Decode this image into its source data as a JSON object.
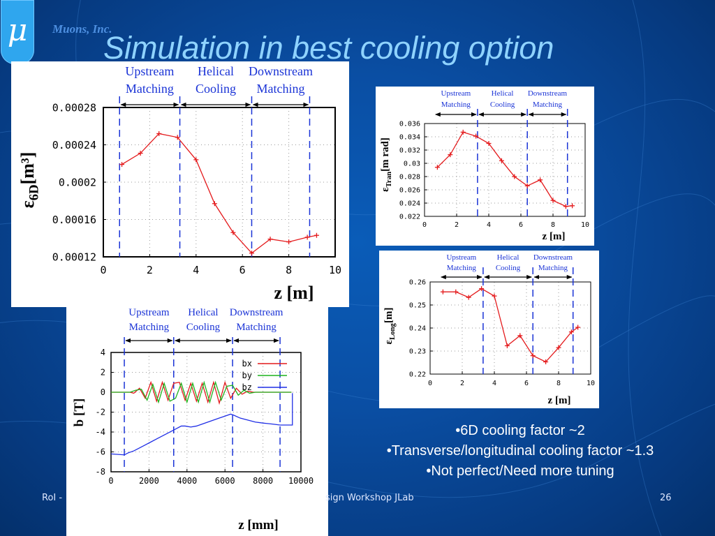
{
  "slide": {
    "title": "Simulation in best cooling option",
    "company": "Muons, Inc.",
    "logo_glyph": "μ",
    "page_number": "26",
    "footer_left": "RoI -",
    "footer_center": "sign Workshop JLab",
    "bullets": [
      "•6D cooling factor ~2",
      "•Transverse/longitudinal cooling factor ~1.3",
      "•Not perfect/Need more tuning"
    ]
  },
  "colors": {
    "background": "#0a4ea3",
    "title": "#8fd3ff",
    "logo": "#2fa6ee",
    "company": "#4d8fe0",
    "region_label": "#1a33d6",
    "curve": "#e41a1c"
  },
  "chart_data": [
    {
      "type": "line",
      "id": "emittance-6d",
      "regions": [
        "Upstream",
        "Matching",
        "Helical",
        "Cooling",
        "Downstream",
        "Matching"
      ],
      "region_boundaries": [
        0.7,
        3.3,
        6.4,
        8.9
      ],
      "xlabel": "z [m]",
      "ylabel": "ε6D [m³]",
      "xlim": [
        0,
        10
      ],
      "ylim": [
        0.00012,
        0.00028
      ],
      "xticks": [
        0,
        2,
        4,
        6,
        8,
        10
      ],
      "xtick_labels": [
        "0",
        "2",
        "4",
        "6",
        "8",
        "10"
      ],
      "yticks": [
        0.00012,
        0.00016,
        0.0002,
        0.00024,
        0.00028
      ],
      "ytick_labels": [
        "0.00012",
        "0.00016",
        "0.0002",
        "0.00024",
        "0.00028"
      ],
      "grid": true,
      "series": [
        {
          "x": [
            0.8,
            1.6,
            2.4,
            3.2,
            4.0,
            4.8,
            5.6,
            6.4,
            7.2,
            8.0,
            8.8,
            9.2
          ],
          "values": [
            0.000219,
            0.000231,
            0.000252,
            0.000248,
            0.000224,
            0.000177,
            0.000146,
            0.000124,
            0.000139,
            0.000136,
            0.000141,
            0.000143
          ]
        }
      ]
    },
    {
      "type": "line",
      "id": "emittance-transverse",
      "regions": [
        "Upstream",
        "Matching",
        "Helical",
        "Cooling",
        "Downstream",
        "Matching"
      ],
      "region_boundaries": [
        3.3,
        6.4,
        8.9
      ],
      "xlabel": "z [m]",
      "ylabel": "εTran[m rad]",
      "xlim": [
        0,
        10
      ],
      "ylim": [
        0.022,
        0.036
      ],
      "xticks": [
        0,
        2,
        4,
        6,
        8,
        10
      ],
      "xtick_labels": [
        "0",
        "2",
        "4",
        "6",
        "8",
        "10"
      ],
      "yticks": [
        0.022,
        0.024,
        0.026,
        0.028,
        0.03,
        0.032,
        0.034,
        0.036
      ],
      "ytick_labels": [
        "0.022",
        "0.024",
        "0.026",
        "0.028",
        "0.03",
        "0.032",
        "0.034",
        "0.036"
      ],
      "grid": true,
      "series": [
        {
          "x": [
            0.8,
            1.6,
            2.4,
            3.2,
            4.0,
            4.8,
            5.6,
            6.4,
            7.2,
            8.0,
            8.8,
            9.2
          ],
          "values": [
            0.0294,
            0.0313,
            0.0347,
            0.0341,
            0.033,
            0.0304,
            0.028,
            0.0266,
            0.0275,
            0.0244,
            0.0235,
            0.0236
          ]
        }
      ]
    },
    {
      "type": "line",
      "id": "emittance-longitudinal",
      "regions": [
        "Upstream",
        "Matching",
        "Helical",
        "Cooling",
        "Downstream",
        "Matching"
      ],
      "region_boundaries": [
        3.3,
        6.4,
        8.9
      ],
      "xlabel": "z [m]",
      "ylabel": "εLong[m]",
      "xlim": [
        0,
        10
      ],
      "ylim": [
        0.22,
        0.26
      ],
      "xticks": [
        0,
        2,
        4,
        6,
        8,
        10
      ],
      "xtick_labels": [
        "0",
        "2",
        "4",
        "6",
        "8",
        "10"
      ],
      "yticks": [
        0.22,
        0.23,
        0.24,
        0.25,
        0.26
      ],
      "ytick_labels": [
        "0.22",
        "0.23",
        "0.24",
        "0.25",
        "0.26"
      ],
      "grid": true,
      "series": [
        {
          "x": [
            0.8,
            1.6,
            2.4,
            3.2,
            4.0,
            4.8,
            5.6,
            6.4,
            7.2,
            8.0,
            8.8,
            9.2
          ],
          "values": [
            0.2557,
            0.2557,
            0.2533,
            0.2571,
            0.2539,
            0.2323,
            0.2367,
            0.228,
            0.2253,
            0.2315,
            0.2383,
            0.2403
          ]
        }
      ]
    },
    {
      "type": "line",
      "id": "magnetic-field",
      "regions": [
        "Upstream",
        "Matching",
        "Helical",
        "Cooling",
        "Downstream",
        "Matching"
      ],
      "region_boundaries": [
        700,
        3300,
        6400,
        8900
      ],
      "xlabel": "z [mm]",
      "ylabel": "b [T]",
      "xlim": [
        0,
        10000
      ],
      "ylim": [
        -8,
        4
      ],
      "xticks": [
        0,
        2000,
        4000,
        6000,
        8000,
        10000
      ],
      "xtick_labels": [
        "0",
        "2000",
        "4000",
        "6000",
        "8000",
        "10000"
      ],
      "yticks": [
        -8,
        -6,
        -4,
        -2,
        0,
        2,
        4
      ],
      "ytick_labels": [
        "-8",
        "-6",
        "-4",
        "-2",
        "0",
        "2",
        "4"
      ],
      "grid": true,
      "legend": "top-right",
      "series": [
        {
          "name": "bx",
          "color": "#e41a1c",
          "x": [
            0,
            500,
            1000,
            1200,
            1500,
            1800,
            2100,
            2400,
            2700,
            3000,
            3300,
            3600,
            3900,
            4200,
            4500,
            4800,
            5100,
            5400,
            5700,
            6000,
            6300,
            6600,
            6900,
            7200,
            7500,
            7800,
            8100,
            8400,
            8700,
            9000,
            9500
          ],
          "values": [
            0,
            0,
            0,
            -0.1,
            0.4,
            -0.6,
            1.0,
            -0.9,
            1.0,
            -0.8,
            0.9,
            1.0,
            -0.8,
            0.9,
            -0.9,
            0.9,
            -1.0,
            1.0,
            -1.1,
            1.0,
            -0.6,
            0.4,
            -0.2,
            0.1,
            0,
            0,
            0,
            0,
            0,
            0,
            0
          ]
        },
        {
          "name": "by",
          "color": "#1fb41f",
          "x": [
            0,
            500,
            1000,
            1300,
            1600,
            1900,
            2200,
            2500,
            2800,
            3100,
            3400,
            3700,
            4000,
            4300,
            4600,
            4900,
            5200,
            5500,
            5800,
            6100,
            6400,
            6700,
            7000,
            7300,
            7600,
            8000,
            9500
          ],
          "values": [
            0,
            0,
            0,
            0.2,
            0.3,
            -0.8,
            0.8,
            -1.0,
            0.9,
            -0.9,
            -0.6,
            0.9,
            -1.0,
            0.9,
            -1.0,
            1.0,
            -1.0,
            1.0,
            -0.8,
            0.6,
            0.7,
            -0.3,
            0.2,
            -0.1,
            0,
            0,
            0
          ]
        },
        {
          "name": "bz",
          "color": "#1f2ee6",
          "x": [
            0,
            700,
            900,
            1200,
            1500,
            1800,
            2100,
            2400,
            2700,
            3000,
            3300,
            3500,
            3700,
            3900,
            4200,
            4500,
            4800,
            5100,
            5400,
            5700,
            6000,
            6300,
            6450,
            6800,
            7200,
            7600,
            8000,
            8500,
            8900,
            9200,
            9500,
            9550,
            9550
          ],
          "values": [
            -6.2,
            -6.3,
            -6.1,
            -5.9,
            -5.6,
            -5.3,
            -5.0,
            -4.7,
            -4.4,
            -4.1,
            -3.8,
            -3.6,
            -3.4,
            -3.4,
            -3.5,
            -3.4,
            -3.2,
            -3.0,
            -2.8,
            -2.6,
            -2.4,
            -2.2,
            -2.3,
            -2.6,
            -2.8,
            -3.0,
            -3.1,
            -3.2,
            -3.3,
            -3.3,
            -3.3,
            -3.3,
            -0.1
          ]
        }
      ]
    }
  ]
}
